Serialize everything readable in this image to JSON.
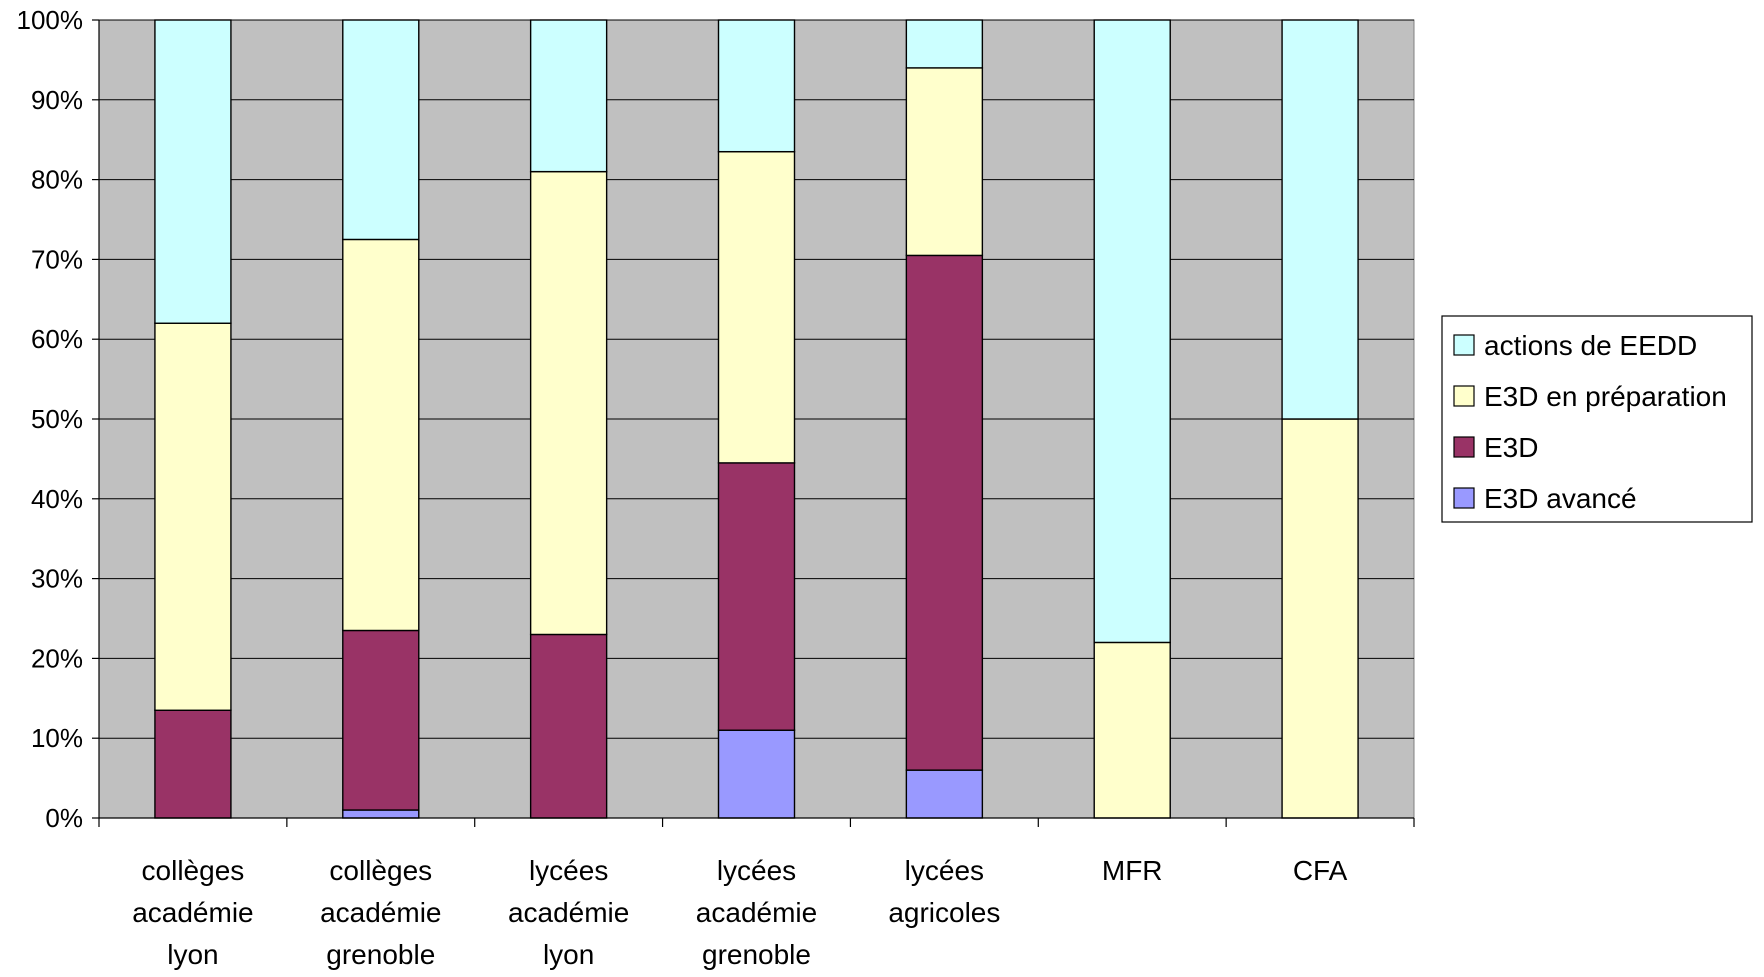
{
  "chart_data": {
    "type": "bar",
    "stacked": true,
    "normalized_percent": true,
    "categories": [
      [
        "collèges",
        "académie",
        "lyon"
      ],
      [
        "collèges",
        "académie",
        "grenoble"
      ],
      [
        "lycées",
        "académie",
        "lyon"
      ],
      [
        "lycées",
        "académie",
        "grenoble"
      ],
      [
        "lycées",
        "agricoles"
      ],
      [
        "MFR"
      ],
      [
        "CFA"
      ]
    ],
    "series": [
      {
        "name": "E3D avancé",
        "color": "#9999ff",
        "values": [
          0,
          1,
          0,
          11,
          6,
          0,
          0
        ]
      },
      {
        "name": "E3D",
        "color": "#993366",
        "values": [
          13.5,
          22.5,
          23,
          33.5,
          64.5,
          0,
          0
        ]
      },
      {
        "name": "E3D en préparation",
        "color": "#ffffcc",
        "values": [
          48.5,
          49,
          58,
          39,
          23.5,
          22,
          50
        ]
      },
      {
        "name": "actions de EEDD",
        "color": "#ccffff",
        "values": [
          38,
          27.5,
          19,
          16.5,
          6,
          78,
          50
        ]
      }
    ],
    "ylim": [
      0,
      100
    ],
    "yticks": [
      "0%",
      "10%",
      "20%",
      "30%",
      "40%",
      "50%",
      "60%",
      "70%",
      "80%",
      "90%",
      "100%"
    ],
    "grid": true,
    "plot_background": "#c0c0c0",
    "legend": {
      "position": "right",
      "order": [
        "actions de EEDD",
        "E3D en préparation",
        "E3D",
        "E3D avancé"
      ]
    }
  }
}
